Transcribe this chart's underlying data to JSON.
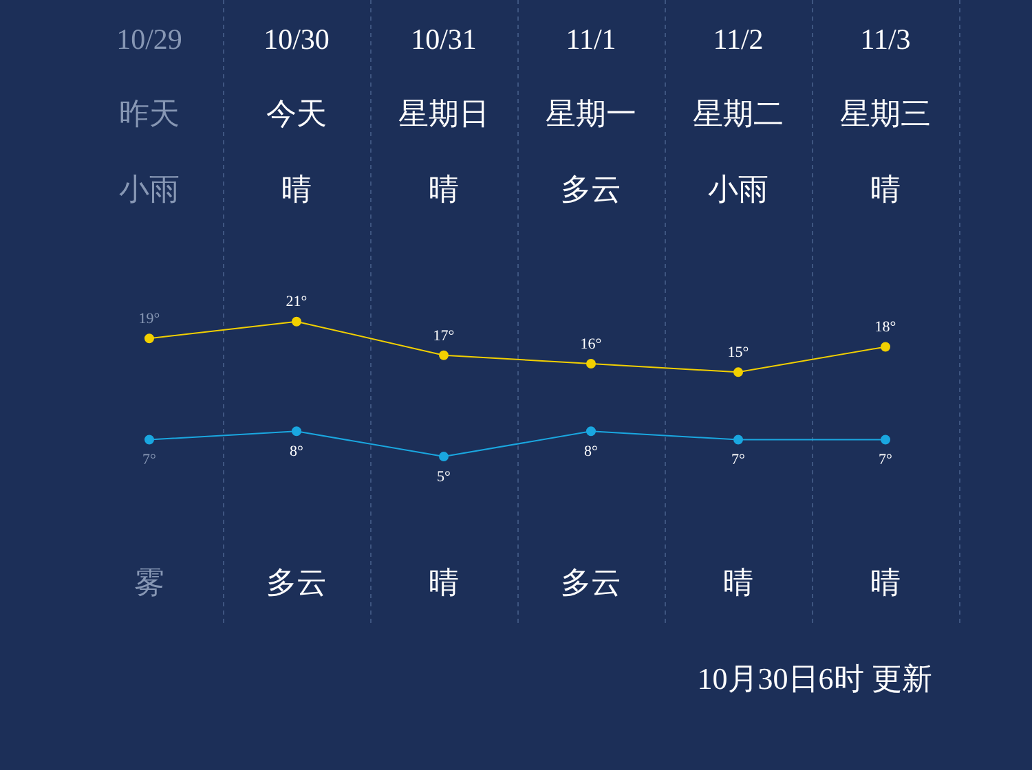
{
  "chart_data": {
    "type": "line",
    "categories": [
      "10/29",
      "10/30",
      "10/31",
      "11/1",
      "11/2",
      "11/3"
    ],
    "series": [
      {
        "color": "#f2d000",
        "values": [
          19,
          21,
          17,
          16,
          15,
          18
        ],
        "value_labels": [
          "19°",
          "21°",
          "17°",
          "16°",
          "15°",
          "18°"
        ]
      },
      {
        "color": "#1aa7e0",
        "values": [
          7,
          8,
          5,
          8,
          7,
          7
        ],
        "value_labels": [
          "7°",
          "8°",
          "5°",
          "8°",
          "7°",
          "7°"
        ]
      }
    ],
    "marker": "circle",
    "grid": "x",
    "tick_labels": "x",
    "annotations": [
      "昨天",
      "今天",
      "星期日",
      "星期一",
      "星期二",
      "星期三",
      "小雨",
      "晴",
      "晴",
      "多云",
      "小雨",
      "晴",
      "雾",
      "多云",
      "晴",
      "多云",
      "晴",
      "晴",
      "10月30日6时 更新"
    ]
  }
}
